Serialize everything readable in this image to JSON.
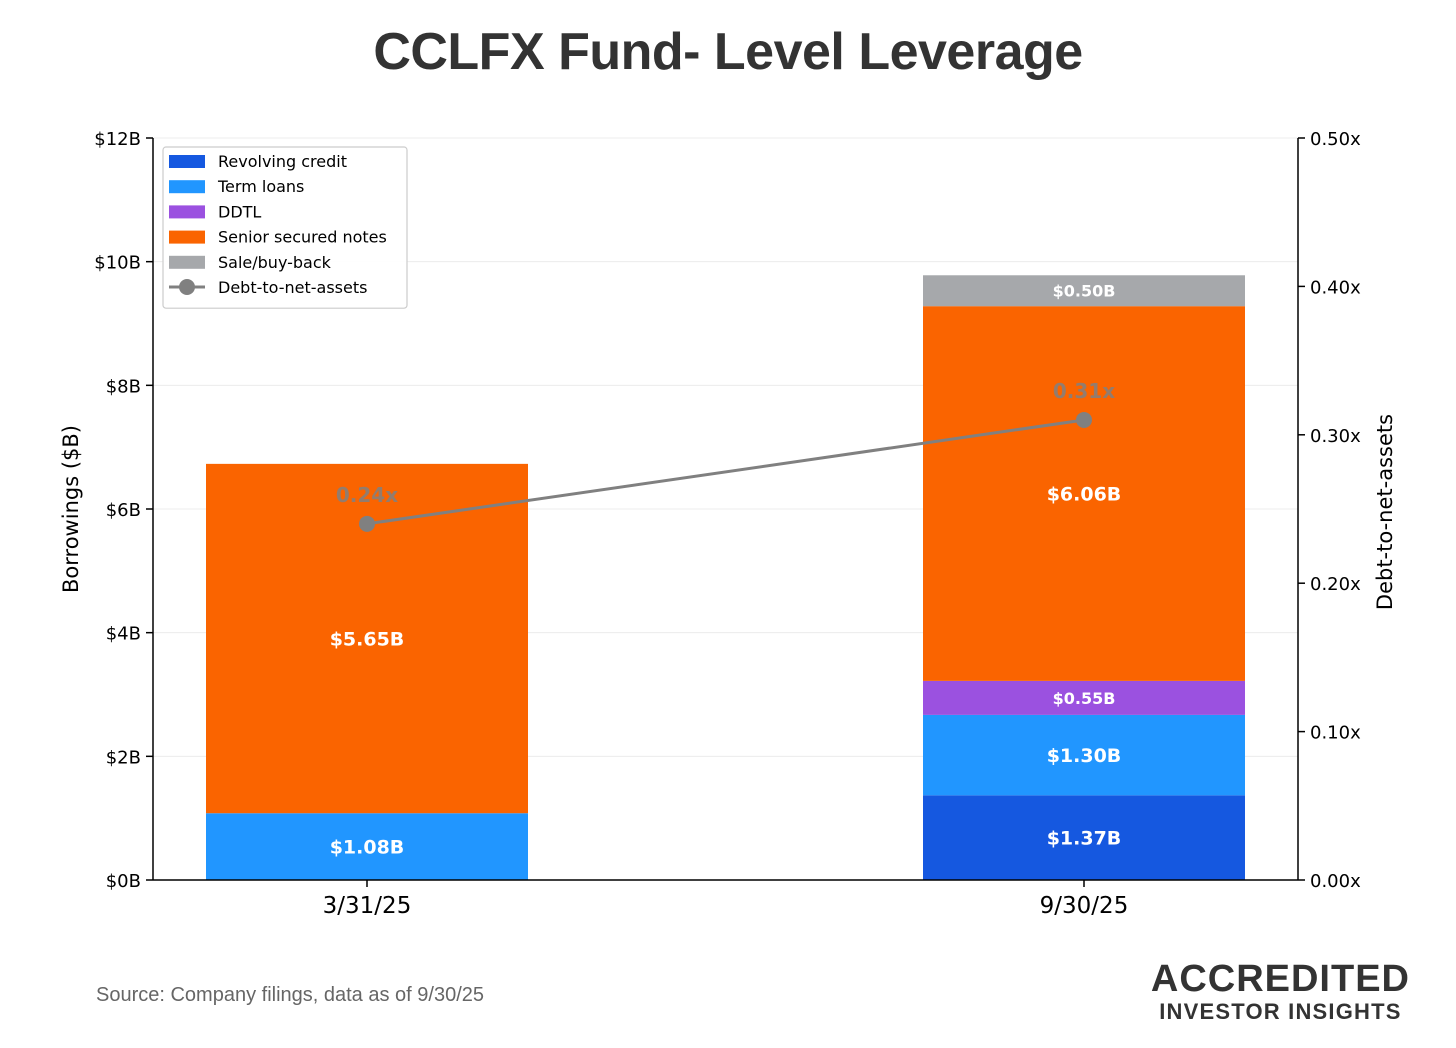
{
  "chart_data": {
    "type": "bar",
    "stacked": true,
    "title": "CCLFX Fund- Level Leverage",
    "categories": [
      "3/31/25",
      "9/30/25"
    ],
    "ylabel": "Borrowings ($B)",
    "y2label": "Debt-to-net-assets",
    "ylim": [
      0,
      12
    ],
    "y2lim": [
      0,
      0.5
    ],
    "y_ticks": [
      0,
      2,
      4,
      6,
      8,
      10,
      12
    ],
    "y_tick_labels": [
      "$0B",
      "$2B",
      "$4B",
      "$6B",
      "$8B",
      "$10B",
      "$12B"
    ],
    "y2_ticks": [
      0,
      0.1,
      0.2,
      0.3,
      0.4,
      0.5
    ],
    "y2_tick_labels": [
      "0.00x",
      "0.10x",
      "0.20x",
      "0.30x",
      "0.40x",
      "0.50x"
    ],
    "grid": true,
    "legend_position": "top-left",
    "series": [
      {
        "name": "Revolving credit",
        "color": "#1558E0",
        "values": [
          0,
          1.37
        ],
        "labels": [
          "",
          "$1.37B"
        ]
      },
      {
        "name": "Term loans",
        "color": "#2196FF",
        "values": [
          1.08,
          1.3
        ],
        "labels": [
          "$1.08B",
          "$1.30B"
        ]
      },
      {
        "name": "DDTL",
        "color": "#9B51E0",
        "values": [
          0,
          0.55
        ],
        "labels": [
          "",
          "$0.55B"
        ]
      },
      {
        "name": "Senior secured notes",
        "color": "#FA6400",
        "values": [
          5.65,
          6.06
        ],
        "labels": [
          "$5.65B",
          "$6.06B"
        ]
      },
      {
        "name": "Sale/buy-back",
        "color": "#A6A8AB",
        "values": [
          0,
          0.5
        ],
        "labels": [
          "",
          "$0.50B"
        ]
      }
    ],
    "line_series": {
      "name": "Debt-to-net-assets",
      "color": "#808080",
      "axis": "right",
      "values": [
        0.24,
        0.31
      ],
      "labels": [
        "0.24x",
        "0.31x"
      ]
    }
  },
  "footer": {
    "source": "Source: Company filings, data as of 9/30/25",
    "brand_line1": "ACCREDITED",
    "brand_line2": "INVESTOR INSIGHTS"
  }
}
